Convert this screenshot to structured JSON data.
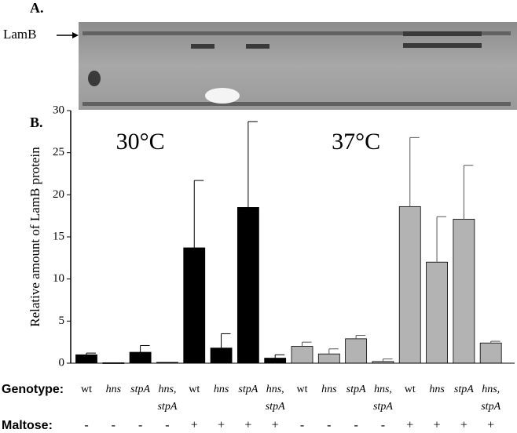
{
  "panel_a": {
    "label": "A.",
    "band_label": "LamB"
  },
  "panel_b_label": "B.",
  "chart_data": {
    "type": "bar",
    "y_label": "Relative amount of LamB protein",
    "row_labels": [
      "Genotype:",
      "Maltose:"
    ],
    "categories": [
      "wt",
      "hns",
      "stpA",
      "hns, stpA",
      "wt",
      "hns",
      "stpA",
      "hns, stpA",
      "wt",
      "hns",
      "stpA",
      "hns, stpA",
      "wt",
      "hns",
      "stpA",
      "hns, stpA"
    ],
    "maltose": [
      "-",
      "-",
      "-",
      "-",
      "+",
      "+",
      "+",
      "+",
      "-",
      "-",
      "-",
      "-",
      "+",
      "+",
      "+",
      "+"
    ],
    "series": [
      {
        "name": "30°C",
        "color": "#000000",
        "values": [
          1.0,
          0.05,
          1.3,
          0.1,
          13.7,
          1.8,
          18.5,
          0.6,
          null,
          null,
          null,
          null,
          null,
          null,
          null,
          null
        ],
        "errors": [
          0.2,
          0,
          0.8,
          0,
          8.0,
          1.7,
          10.2,
          0.4,
          null,
          null,
          null,
          null,
          null,
          null,
          null,
          null
        ]
      },
      {
        "name": "37°C",
        "color": "#b3b3b3",
        "values": [
          null,
          null,
          null,
          null,
          null,
          null,
          null,
          null,
          2.0,
          1.1,
          2.9,
          0.2,
          18.6,
          12.0,
          17.1,
          2.4
        ],
        "errors": [
          null,
          null,
          null,
          null,
          null,
          null,
          null,
          null,
          0.5,
          0.6,
          0.4,
          0.3,
          8.2,
          5.4,
          6.4,
          0.2
        ]
      }
    ],
    "ylim": [
      0,
      30
    ],
    "yticks": [
      0,
      5,
      10,
      15,
      20,
      25,
      30
    ]
  }
}
